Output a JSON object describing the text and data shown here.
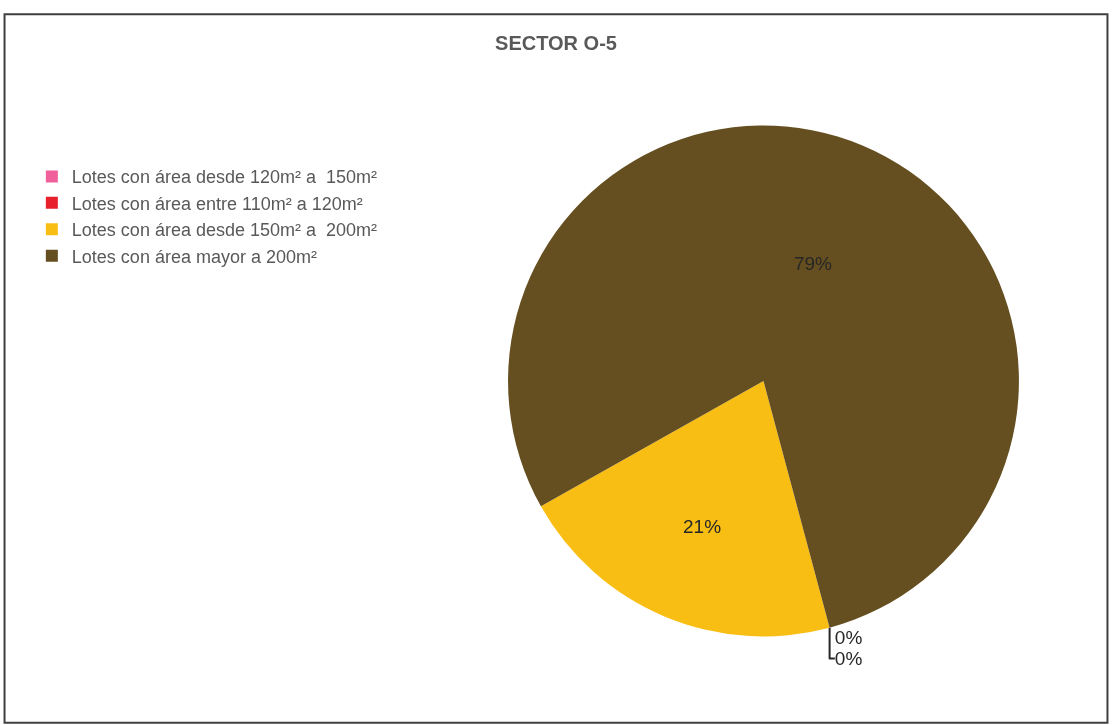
{
  "chart_data": {
    "type": "pie",
    "title": "SECTOR O-5",
    "categories": [
      "Lotes con área desde 120m² a  150m²",
      "Lotes con área entre 110m² a 120m²",
      "Lotes con área desde 150m² a  200m²",
      "Lotes con área mayor a 200m²"
    ],
    "values": [
      0,
      0,
      21,
      79
    ],
    "value_labels": [
      "0%",
      "0%",
      "21%",
      "79%"
    ],
    "colors": [
      "#f0609a",
      "#e8202a",
      "#f9be14",
      "#654f20"
    ],
    "legend": "left"
  }
}
